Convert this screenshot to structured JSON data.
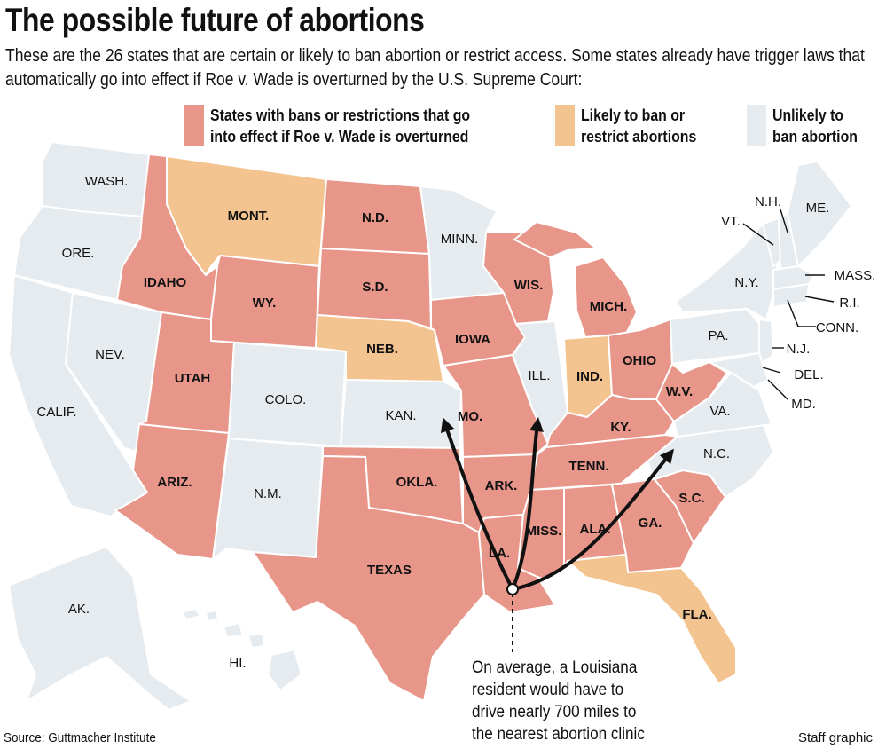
{
  "title": "The possible future of abortions",
  "subtitle": "These are the 26 states that are certain or likely to ban abortion or restrict access. Some states already have trigger laws that automatically go into effect if Roe v. Wade is overturned by the U.S. Supreme Court:",
  "legend": [
    {
      "line1": "States with bans or restrictions that go",
      "line2": "into effect if Roe v. Wade is overturned",
      "color": "#e8968a"
    },
    {
      "line1": "Likely to ban or",
      "line2": "restrict abortions",
      "color": "#f3c48f"
    },
    {
      "line1": "Unlikely to",
      "line2": "ban abortion",
      "color": "#e6ebef"
    }
  ],
  "colors": {
    "restrict": "#e8968a",
    "likely": "#f3c48f",
    "unlikely": "#e6ebef",
    "border": "#ffffff",
    "arrow": "#111111"
  },
  "states": {
    "wash": "WASH.",
    "ore": "ORE.",
    "calif": "CALIF.",
    "nev": "NEV.",
    "idaho": "IDAHO",
    "mont": "MONT.",
    "wy": "WY.",
    "utah": "UTAH",
    "ariz": "ARIZ.",
    "colo": "COLO.",
    "nm": "N.M.",
    "nd": "N.D.",
    "sd": "S.D.",
    "neb": "NEB.",
    "kan": "KAN.",
    "okla": "OKLA.",
    "texas": "TEXAS",
    "minn": "MINN.",
    "iowa": "IOWA",
    "mo": "MO.",
    "ark": "ARK.",
    "la": "LA.",
    "wis": "WIS.",
    "ill": "ILL.",
    "mich": "MICH.",
    "ind": "IND.",
    "ohio": "OHIO",
    "ky": "KY.",
    "tenn": "TENN.",
    "miss": "MISS.",
    "ala": "ALA.",
    "ga": "GA.",
    "fla": "FLA.",
    "sc": "S.C.",
    "nc": "N.C.",
    "va": "VA.",
    "wv": "W.V.",
    "pa": "PA.",
    "ny": "N.Y.",
    "vt": "VT.",
    "nh": "N.H.",
    "me": "ME.",
    "mass": "MASS.",
    "ri": "R.I.",
    "conn": "CONN.",
    "nj": "N.J.",
    "del": "DEL.",
    "md": "MD.",
    "ak": "AK.",
    "hi": "HI."
  },
  "note": [
    "On average, a Louisiana",
    "resident would have to",
    "drive nearly 700 miles to",
    "the nearest abortion clinic"
  ],
  "source": "Source: Guttmacher Institute",
  "credit": "Staff graphic"
}
